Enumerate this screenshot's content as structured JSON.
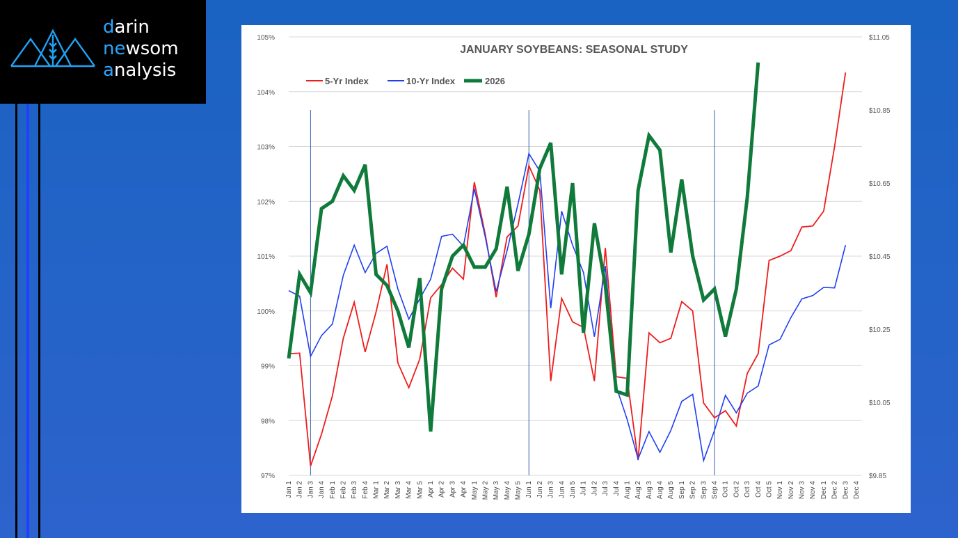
{
  "brand": {
    "line1_accent": "d",
    "line1_rest": "arin",
    "line2_accent": "ne",
    "line2_mid": "w",
    "line2_rest": "som",
    "line3_accent": "a",
    "line3_rest": "nalysis"
  },
  "colors": {
    "background": "#1f63c6",
    "five_yr": "#ee1c1c",
    "ten_yr": "#1f3ff0",
    "current": "#0f7a3a",
    "accent": "#2ba6ff"
  },
  "chart_data": {
    "type": "line",
    "title": "JANUARY SOYBEANS: SEASONAL STUDY",
    "xlabel": "",
    "ylabel_left": "",
    "ylabel_right": "",
    "categories": [
      "Jan 1",
      "Jan 2",
      "Jan 3",
      "Jan 4",
      "Feb 1",
      "Feb 2",
      "Feb 3",
      "Feb 4",
      "Mar 1",
      "Mar 2",
      "Mar 3",
      "Mar 4",
      "Mar 5",
      "Apr 1",
      "Apr 2",
      "Apr 3",
      "Apr 4",
      "May 1",
      "May 2",
      "May 3",
      "May 4",
      "May 5",
      "Jun 1",
      "Jun 2",
      "Jun 3",
      "Jun 4",
      "Jun 5",
      "Jul 1",
      "Jul 2",
      "Jul 3",
      "Jul 4",
      "Aug 1",
      "Aug 2",
      "Aug 3",
      "Aug 4",
      "Aug 5",
      "Sep 1",
      "Sep 2",
      "Sep 3",
      "Sep 4",
      "Oct 1",
      "Oct 2",
      "Oct 3",
      "Oct 4",
      "Oct 5",
      "Nov 1",
      "Nov 2",
      "Nov 3",
      "Nov 4",
      "Dec 1",
      "Dec 2",
      "Dec 3",
      "Dec 4"
    ],
    "left_axis": {
      "min": 97,
      "max": 105,
      "ticks": [
        "97%",
        "98%",
        "99%",
        "100%",
        "101%",
        "102%",
        "103%",
        "104%",
        "105%"
      ]
    },
    "right_axis": {
      "min": 9.85,
      "max": 11.05,
      "ticks": [
        "$9.85",
        "$10.05",
        "$10.25",
        "$10.45",
        "$10.65",
        "$10.85",
        "$11.05"
      ]
    },
    "legend": [
      "5-Yr Index",
      "10-Yr Index",
      "2026"
    ],
    "vertical_markers": [
      "Jan 3",
      "Jun 1",
      "Sep 4"
    ],
    "series": [
      {
        "name": "5-Yr Index",
        "axis": "left",
        "values": [
          99.22,
          99.23,
          97.17,
          97.75,
          98.45,
          99.5,
          100.16,
          99.25,
          99.98,
          100.85,
          99.05,
          98.6,
          99.12,
          100.24,
          100.48,
          100.78,
          100.58,
          102.35,
          101.4,
          100.25,
          101.35,
          101.55,
          102.65,
          102.2,
          98.72,
          100.23,
          99.8,
          99.7,
          98.72,
          101.15,
          98.8,
          98.77,
          97.28,
          99.6,
          99.42,
          99.5,
          100.17,
          100,
          98.32,
          98.05,
          98.18,
          97.9,
          98.86,
          99.22,
          100.92,
          101,
          101.1,
          101.53,
          101.55,
          101.82,
          103,
          104.35,
          null
        ]
      },
      {
        "name": "10-Yr Index",
        "axis": "left",
        "values": [
          100.37,
          100.27,
          99.17,
          99.55,
          99.76,
          100.65,
          101.2,
          100.7,
          101.05,
          101.18,
          100.4,
          99.85,
          100.22,
          100.58,
          101.36,
          101.4,
          101.18,
          102.23,
          101.35,
          100.35,
          101.1,
          101.95,
          102.87,
          102.55,
          100.05,
          101.82,
          101.2,
          100.7,
          99.53,
          100.82,
          98.62,
          98.02,
          97.3,
          97.8,
          97.42,
          97.82,
          98.35,
          98.48,
          97.27,
          97.82,
          98.46,
          98.14,
          98.5,
          98.63,
          99.38,
          99.48,
          99.88,
          100.22,
          100.28,
          100.43,
          100.42,
          101.2,
          null
        ]
      },
      {
        "name": "2026",
        "axis": "right",
        "values": [
          10.17,
          10.4,
          10.35,
          10.58,
          10.6,
          10.67,
          10.63,
          10.7,
          10.4,
          10.37,
          10.3,
          10.2,
          10.39,
          9.97,
          10.36,
          10.45,
          10.48,
          10.42,
          10.42,
          10.47,
          10.64,
          10.41,
          10.51,
          10.69,
          10.76,
          10.4,
          10.65,
          10.24,
          10.54,
          10.37,
          10.08,
          10.07,
          10.63,
          10.78,
          10.74,
          10.46,
          10.66,
          10.45,
          10.33,
          10.36,
          10.23,
          10.36,
          10.61,
          10.98,
          null,
          null,
          null,
          null,
          null,
          null,
          null,
          null,
          null
        ]
      }
    ]
  }
}
